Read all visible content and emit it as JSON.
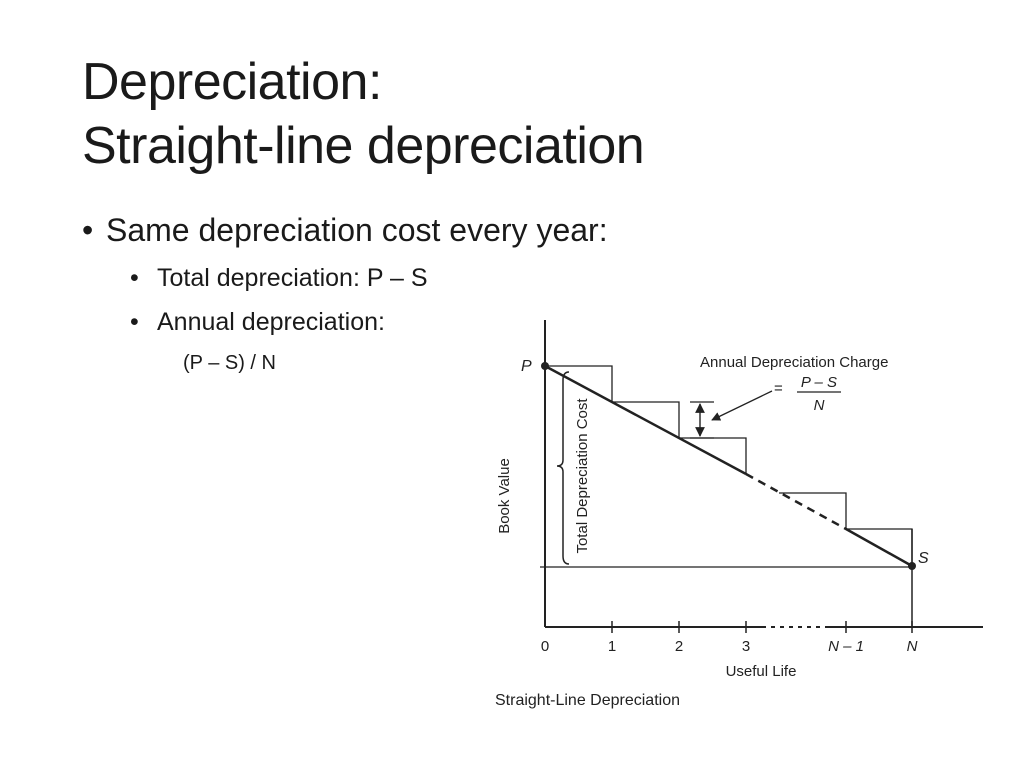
{
  "slide": {
    "title_line1": "Depreciation:",
    "title_line2": "Straight-line depreciation"
  },
  "bullets": {
    "level1": "Same depreciation cost every year:",
    "total": "Total depreciation: P – S",
    "annual": "Annual depreciation:",
    "formula": "(P – S) / N"
  },
  "diagram": {
    "caption": "Straight-Line Depreciation",
    "y_axis_label": "Book Value",
    "x_axis_label": "Useful Life",
    "bracket_label": "Total Depreciation Cost",
    "annotation_title": "Annual Depreciation Charge",
    "annotation_equals": "=",
    "annotation_numerator": "P – S",
    "annotation_denominator": "N",
    "point_p": "P",
    "point_s": "S",
    "x_ticks": [
      "0",
      "1",
      "2",
      "3",
      "N – 1",
      "N"
    ]
  }
}
